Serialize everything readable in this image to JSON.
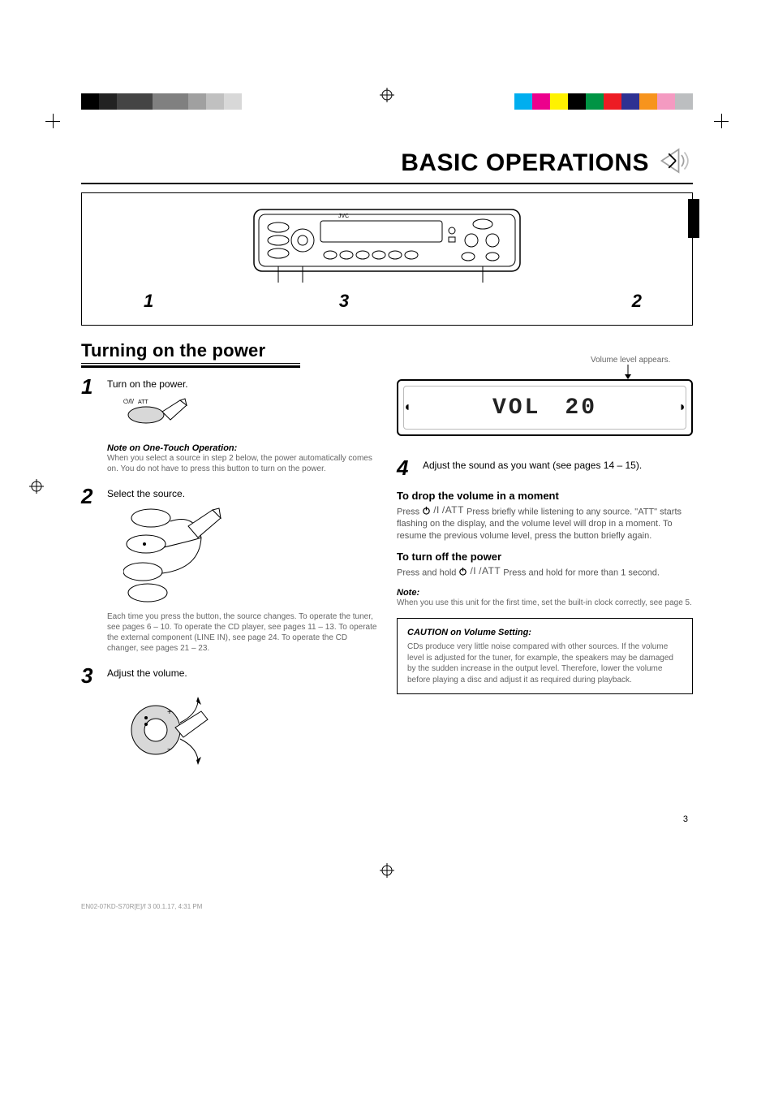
{
  "registration": {
    "left_swatches": [
      "#000000",
      "#222222",
      "#444444",
      "#444444",
      "#808080",
      "#808080",
      "#a0a0a0",
      "#c0c0c0",
      "#d8d8d8",
      "#ffffff"
    ],
    "right_swatches": [
      "#00aeef",
      "#ec008c",
      "#fff200",
      "#000000",
      "#009444",
      "#ed1c24",
      "#2e3192",
      "#f7941d",
      "#f49ac1",
      "#bcbec0"
    ]
  },
  "title": "BASIC OPERATIONS",
  "device_callouts": [
    "1",
    "3",
    "2"
  ],
  "section_h2": "Turning on the power",
  "steps": {
    "s1": {
      "n": "1",
      "text": "Turn on the power.",
      "note_title": "Note on One-Touch Operation:",
      "note_body": "When you select a source in step 2 below, the power automatically comes on. You do not have to press this button to turn on the power."
    },
    "s2": {
      "n": "2",
      "text": "Select the source.",
      "body": "Each time you press the button, the source changes. To operate the tuner, see pages 6 – 10. To operate the CD player, see pages 11 – 13. To operate the external component (LINE IN), see page 24. To operate the CD changer, see pages 21 – 23."
    },
    "s3": {
      "n": "3",
      "text": "Adjust the volume."
    },
    "s4": {
      "n": "4",
      "text": "Adjust the sound as you want (see pages 14 – 15)."
    }
  },
  "lcd": {
    "label": "VOL",
    "value": "20",
    "caption": "Volume level appears."
  },
  "drop_vol": {
    "h": "To drop the volume in a moment",
    "glyph": "/ATT",
    "body": "Press briefly while listening to any source. \"ATT\" starts flashing on the display, and the volume level will drop in a moment. To resume the previous volume level, press the button briefly again."
  },
  "turn_off": {
    "h": "To turn off the power",
    "glyph": "/ATT",
    "body": "Press and hold for more than 1 second.",
    "note_title": "Note:",
    "note_body": "When you use this unit for the first time, set the built-in clock correctly, see page 5."
  },
  "caution": {
    "title": "CAUTION on Volume Setting:",
    "body": "CDs produce very little noise compared with other sources. If the volume level is adjusted for the tuner, for example, the speakers may be damaged by the sudden increase in the output level. Therefore, lower the volume before playing a disc and adjust it as required during playback."
  },
  "page_number": "3",
  "footer_file": "EN02-07KD-S70R[E]/f     3                                     00.1.17, 4:31 PM"
}
